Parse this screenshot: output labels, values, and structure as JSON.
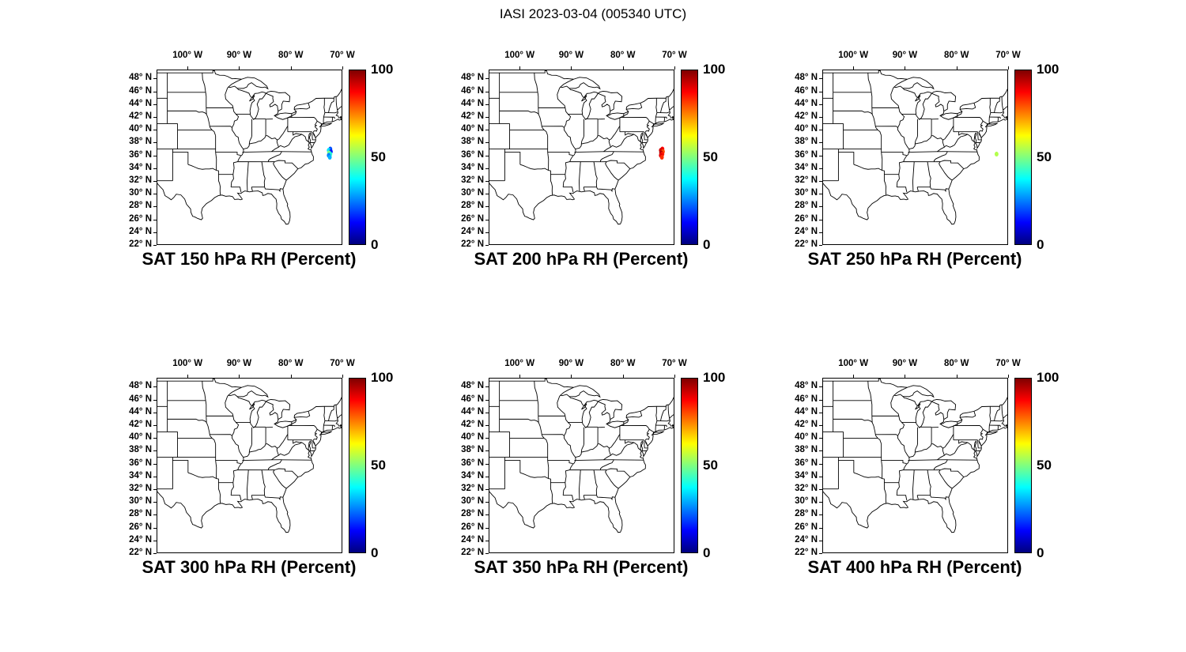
{
  "figure_title": "IASI 2023-03-04 (005340 UTC)",
  "chart_data": {
    "type": "scatter",
    "title": "IASI 2023-03-04 (005340 UTC)",
    "units": "Percent",
    "colormap": "jet",
    "color_range": [
      0,
      100
    ],
    "lon_range": [
      -106,
      -70
    ],
    "lat_range": [
      22,
      49.4
    ],
    "grid": false,
    "colorbar_ticks": [
      {
        "label": "100",
        "value": 100
      },
      {
        "label": "50",
        "value": 50
      },
      {
        "label": "0",
        "value": 0
      }
    ],
    "axes": {
      "lon_ticks": [
        {
          "label": "100° W",
          "lon": -100
        },
        {
          "label": "90° W",
          "lon": -90
        },
        {
          "label": "80° W",
          "lon": -80
        },
        {
          "label": "70° W",
          "lon": -70
        }
      ],
      "lat_ticks": [
        {
          "label": "48° N",
          "lat": 48
        },
        {
          "label": "46° N",
          "lat": 46
        },
        {
          "label": "44° N",
          "lat": 44
        },
        {
          "label": "42° N",
          "lat": 42
        },
        {
          "label": "40° N",
          "lat": 40
        },
        {
          "label": "38° N",
          "lat": 38
        },
        {
          "label": "36° N",
          "lat": 36
        },
        {
          "label": "34° N",
          "lat": 34
        },
        {
          "label": "32° N",
          "lat": 32
        },
        {
          "label": "30° N",
          "lat": 30
        },
        {
          "label": "28° N",
          "lat": 28
        },
        {
          "label": "26° N",
          "lat": 26
        },
        {
          "label": "24° N",
          "lat": 24
        },
        {
          "label": "22° N",
          "lat": 22
        }
      ]
    },
    "panels": [
      {
        "title": "SAT 150 hPa RH (Percent)",
        "level_hPa": 150,
        "points": [
          {
            "lon": -72.2,
            "lat": 37.0,
            "value": 20
          },
          {
            "lon": -72.5,
            "lat": 36.8,
            "value": 35
          },
          {
            "lon": -72.1,
            "lat": 36.6,
            "value": 15
          },
          {
            "lon": -72.45,
            "lat": 36.4,
            "value": 50
          },
          {
            "lon": -72.2,
            "lat": 36.2,
            "value": 42
          },
          {
            "lon": -72.5,
            "lat": 36.0,
            "value": 25
          },
          {
            "lon": -72.3,
            "lat": 35.7,
            "value": 30
          }
        ]
      },
      {
        "title": "SAT 200 hPa RH (Percent)",
        "level_hPa": 200,
        "points": [
          {
            "lon": -72.2,
            "lat": 37.0,
            "value": 88
          },
          {
            "lon": -72.5,
            "lat": 36.8,
            "value": 92
          },
          {
            "lon": -72.1,
            "lat": 36.6,
            "value": 80
          },
          {
            "lon": -72.45,
            "lat": 36.4,
            "value": 95
          },
          {
            "lon": -72.2,
            "lat": 36.2,
            "value": 85
          },
          {
            "lon": -72.5,
            "lat": 36.0,
            "value": 90
          },
          {
            "lon": -72.3,
            "lat": 35.7,
            "value": 83
          }
        ]
      },
      {
        "title": "SAT 250 hPa RH (Percent)",
        "level_hPa": 250,
        "points": [
          {
            "lon": -72.1,
            "lat": 36.2,
            "value": 55
          }
        ]
      },
      {
        "title": "SAT 300 hPa RH (Percent)",
        "level_hPa": 300,
        "points": []
      },
      {
        "title": "SAT 350 hPa RH (Percent)",
        "level_hPa": 350,
        "points": []
      },
      {
        "title": "SAT 400 hPa RH (Percent)",
        "level_hPa": 400,
        "points": []
      }
    ]
  }
}
